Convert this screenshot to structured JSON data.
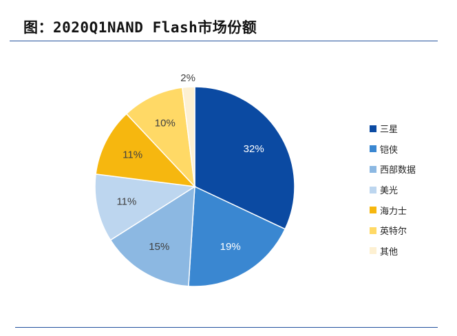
{
  "header": {
    "title": "图：2020Q1NAND Flash市场份额"
  },
  "chart_data": {
    "type": "pie",
    "title": "图：2020Q1NAND Flash市场份额",
    "unit": "%",
    "start_angle_deg": 0,
    "direction": "clockwise",
    "legend_position": "right",
    "slices": [
      {
        "label": "三星",
        "value": 32,
        "display": "32%",
        "color": "#0b4aa2"
      },
      {
        "label": "铠侠",
        "value": 19,
        "display": "19%",
        "color": "#3a87d1"
      },
      {
        "label": "西部数据",
        "value": 15,
        "display": "15%",
        "color": "#8cb8e2"
      },
      {
        "label": "美光",
        "value": 11,
        "display": "11%",
        "color": "#bdd6ef"
      },
      {
        "label": "海力士",
        "value": 11,
        "display": "11%",
        "color": "#f6b70f"
      },
      {
        "label": "英特尔",
        "value": 10,
        "display": "10%",
        "color": "#ffd966"
      },
      {
        "label": "其他",
        "value": 2,
        "display": "2%",
        "color": "#fdf0d2"
      }
    ]
  },
  "colors": {
    "rule": "#1f4e9c",
    "dark_label": "#404040",
    "light_label": "#ffffff"
  }
}
